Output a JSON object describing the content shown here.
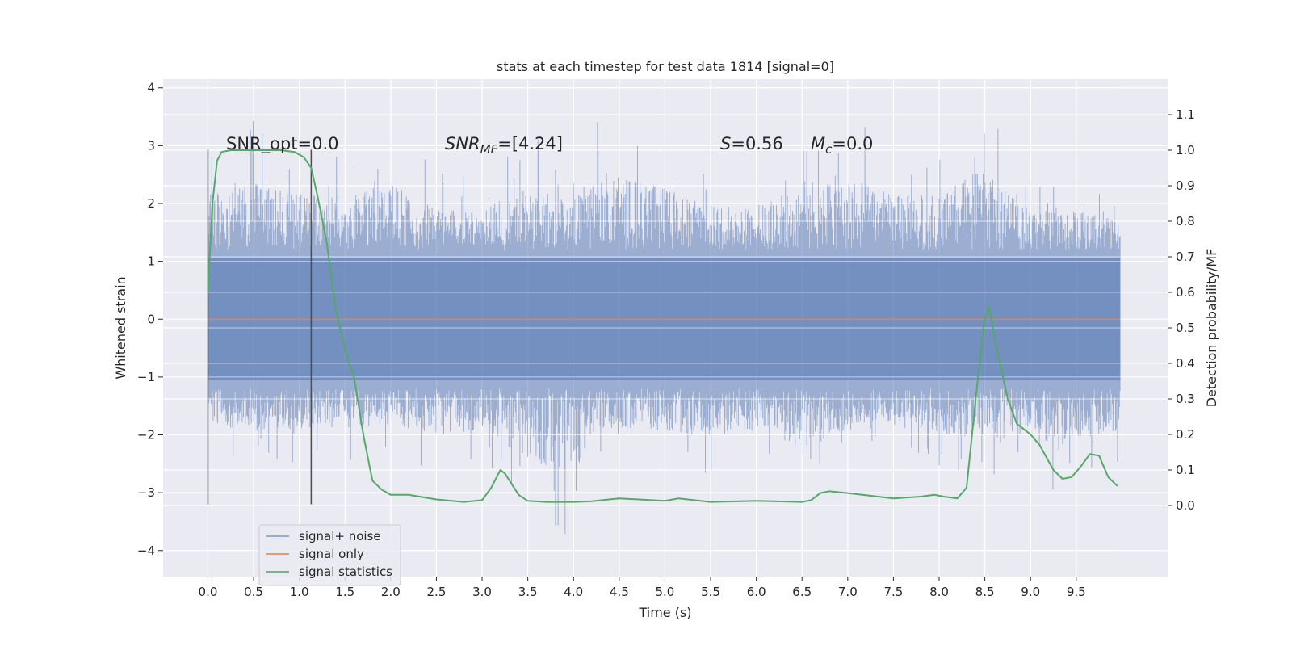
{
  "chart_data": {
    "type": "line",
    "title": "stats at each timestep for test data 1814 [signal=0]",
    "xlabel": "Time (s)",
    "ylabel": "Whitened strain",
    "y2label": "Detection probability/MF",
    "xlim": [
      -0.49,
      10.5
    ],
    "ylim": [
      -4.45,
      4.15
    ],
    "y2lim": [
      -0.2,
      1.2
    ],
    "x_ticks": [
      "0.0",
      "0.5",
      "1.0",
      "1.5",
      "2.0",
      "2.5",
      "3.0",
      "3.5",
      "4.0",
      "4.5",
      "5.0",
      "5.5",
      "6.0",
      "6.5",
      "7.0",
      "7.5",
      "8.0",
      "8.5",
      "9.0",
      "9.5"
    ],
    "y_ticks": [
      "−4",
      "−3",
      "−2",
      "−1",
      "0",
      "1",
      "2",
      "3",
      "4"
    ],
    "y2_ticks": [
      "0.0",
      "0.1",
      "0.2",
      "0.3",
      "0.4",
      "0.5",
      "0.6",
      "0.7",
      "0.8",
      "0.9",
      "1.0",
      "1.1"
    ],
    "grid": true,
    "legend_placement": "lower-left",
    "annotations": {
      "snr_opt": "SNR_opt=0.0",
      "snr_mf_main": "SNR",
      "snr_mf_sub": "MF",
      "snr_mf_value": "=[4.24]",
      "s_symbol": "S",
      "s_value": "=0.56",
      "mc_symbol": "M",
      "mc_sub": "c",
      "mc_value": "=0.0"
    },
    "vertical_markers": [
      {
        "x": 0.0,
        "y_range": [
          -3.2,
          2.93
        ]
      },
      {
        "x": 1.13,
        "y_range": [
          -3.2,
          2.93
        ]
      }
    ],
    "series": [
      {
        "name": "signal+ noise",
        "color": "#4c72b0",
        "axis": "left",
        "x_range": [
          0.0,
          9.98
        ],
        "envelope_knots": [
          [
            0.0,
            2.9,
            -2.4
          ],
          [
            0.5,
            3.55,
            -2.5
          ],
          [
            1.0,
            3.0,
            -2.5
          ],
          [
            1.5,
            2.95,
            -2.5
          ],
          [
            2.0,
            3.25,
            -2.3
          ],
          [
            2.5,
            2.6,
            -2.7
          ],
          [
            3.0,
            2.4,
            -2.5
          ],
          [
            3.45,
            3.3,
            -3.35
          ],
          [
            3.97,
            2.75,
            -4.05
          ],
          [
            4.3,
            3.75,
            -2.5
          ],
          [
            5.0,
            3.15,
            -2.5
          ],
          [
            5.5,
            2.6,
            -2.9
          ],
          [
            6.0,
            2.5,
            -2.5
          ],
          [
            6.5,
            3.35,
            -3.1
          ],
          [
            7.0,
            3.6,
            -2.6
          ],
          [
            7.5,
            2.9,
            -2.2
          ],
          [
            8.0,
            3.05,
            -2.6
          ],
          [
            8.46,
            3.7,
            -2.8
          ],
          [
            9.0,
            2.5,
            -2.4
          ],
          [
            9.25,
            2.4,
            -3.3
          ],
          [
            9.5,
            2.5,
            -2.7
          ],
          [
            9.98,
            2.1,
            -2.7
          ]
        ]
      },
      {
        "name": "signal only",
        "color": "#dd8452",
        "axis": "left",
        "x": [
          0.0,
          9.98
        ],
        "y": [
          0.0,
          0.0
        ]
      },
      {
        "name": "signal statistics",
        "color": "#55a868",
        "axis": "right",
        "x": [
          0.0,
          0.05,
          0.1,
          0.15,
          0.25,
          0.5,
          0.8,
          0.95,
          1.05,
          1.13,
          1.2,
          1.3,
          1.4,
          1.5,
          1.6,
          1.7,
          1.8,
          1.9,
          2.0,
          2.2,
          2.5,
          2.8,
          3.0,
          3.1,
          3.2,
          3.25,
          3.3,
          3.4,
          3.5,
          3.7,
          4.0,
          4.2,
          4.5,
          5.0,
          5.15,
          5.5,
          6.0,
          6.5,
          6.6,
          6.7,
          6.8,
          7.0,
          7.5,
          7.8,
          7.95,
          8.05,
          8.2,
          8.3,
          8.4,
          8.5,
          8.55,
          8.6,
          8.65,
          8.75,
          8.85,
          9.0,
          9.1,
          9.25,
          9.35,
          9.45,
          9.55,
          9.65,
          9.75,
          9.85,
          9.95
        ],
        "y": [
          0.6,
          0.85,
          0.97,
          0.995,
          1.0,
          1.0,
          1.0,
          0.995,
          0.98,
          0.95,
          0.87,
          0.74,
          0.55,
          0.44,
          0.36,
          0.2,
          0.07,
          0.045,
          0.03,
          0.03,
          0.017,
          0.01,
          0.015,
          0.05,
          0.1,
          0.09,
          0.07,
          0.03,
          0.013,
          0.01,
          0.01,
          0.012,
          0.02,
          0.013,
          0.02,
          0.01,
          0.013,
          0.01,
          0.015,
          0.035,
          0.04,
          0.035,
          0.02,
          0.025,
          0.03,
          0.025,
          0.02,
          0.05,
          0.3,
          0.53,
          0.56,
          0.48,
          0.42,
          0.3,
          0.23,
          0.2,
          0.17,
          0.1,
          0.075,
          0.08,
          0.11,
          0.145,
          0.14,
          0.08,
          0.055
        ]
      }
    ]
  }
}
